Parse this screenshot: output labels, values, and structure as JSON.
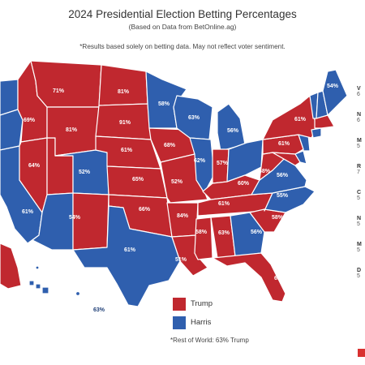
{
  "header": {
    "title": "2024 Presidential Election Betting Percentages",
    "subtitle": "(Based on Data from BetOnline.ag)",
    "note": "*Results based solely on betting data. May not reflect voter sentiment."
  },
  "colors": {
    "trump": "#c0282f",
    "harris": "#2f5fae",
    "border": "#ffffff"
  },
  "legend": [
    {
      "label": "Trump",
      "color": "#c0282f"
    },
    {
      "label": "Harris",
      "color": "#2f5fae"
    }
  ],
  "footer_note": "*Rest of World: 63% Trump",
  "side_panel": [
    {
      "abbr": "V",
      "val": "6"
    },
    {
      "abbr": "N",
      "val": "6"
    },
    {
      "abbr": "M",
      "val": "5"
    },
    {
      "abbr": "R",
      "val": "7"
    },
    {
      "abbr": "C",
      "val": "5"
    },
    {
      "abbr": "N",
      "val": "5"
    },
    {
      "abbr": "M",
      "val": "5"
    },
    {
      "abbr": "D",
      "val": "5"
    }
  ],
  "states": [
    {
      "id": "WA",
      "party": "harris",
      "pct": ""
    },
    {
      "id": "OR",
      "party": "harris",
      "pct": ""
    },
    {
      "id": "CA",
      "party": "harris",
      "pct": ""
    },
    {
      "id": "ID",
      "party": "trump",
      "pct": "69%"
    },
    {
      "id": "NV",
      "party": "trump",
      "pct": "64%"
    },
    {
      "id": "UT",
      "party": "trump",
      "pct": ""
    },
    {
      "id": "AZ",
      "party": "harris",
      "pct": "61%"
    },
    {
      "id": "MT",
      "party": "trump",
      "pct": "71%"
    },
    {
      "id": "WY",
      "party": "trump",
      "pct": "81%"
    },
    {
      "id": "CO",
      "party": "harris",
      "pct": "52%"
    },
    {
      "id": "NM",
      "party": "trump",
      "pct": "54%"
    },
    {
      "id": "ND",
      "party": "trump",
      "pct": "81%"
    },
    {
      "id": "SD",
      "party": "trump",
      "pct": "91%"
    },
    {
      "id": "NE",
      "party": "trump",
      "pct": "61%"
    },
    {
      "id": "KS",
      "party": "trump",
      "pct": "65%"
    },
    {
      "id": "OK",
      "party": "trump",
      "pct": "66%"
    },
    {
      "id": "TX",
      "party": "harris",
      "pct": "61%"
    },
    {
      "id": "MN",
      "party": "harris",
      "pct": "58%"
    },
    {
      "id": "IA",
      "party": "trump",
      "pct": "68%"
    },
    {
      "id": "MO",
      "party": "trump",
      "pct": "52%"
    },
    {
      "id": "AR",
      "party": "trump",
      "pct": "84%"
    },
    {
      "id": "LA",
      "party": "trump",
      "pct": "51%"
    },
    {
      "id": "WI",
      "party": "harris",
      "pct": "63%"
    },
    {
      "id": "IL",
      "party": "harris",
      "pct": "62%"
    },
    {
      "id": "MI",
      "party": "harris",
      "pct": "56%"
    },
    {
      "id": "IN",
      "party": "trump",
      "pct": "57%"
    },
    {
      "id": "OH",
      "party": "harris",
      "pct": ""
    },
    {
      "id": "KY",
      "party": "trump",
      "pct": "60%"
    },
    {
      "id": "TN",
      "party": "trump",
      "pct": "61%"
    },
    {
      "id": "MS",
      "party": "trump",
      "pct": "58%"
    },
    {
      "id": "AL",
      "party": "trump",
      "pct": "63%"
    },
    {
      "id": "GA",
      "party": "harris",
      "pct": "56%"
    },
    {
      "id": "FL",
      "party": "trump",
      "pct": "61%"
    },
    {
      "id": "SC",
      "party": "trump",
      "pct": "58%"
    },
    {
      "id": "NC",
      "party": "harris",
      "pct": "55%"
    },
    {
      "id": "VA",
      "party": "harris",
      "pct": "56%"
    },
    {
      "id": "WV",
      "party": "trump",
      "pct": "68%"
    },
    {
      "id": "PA",
      "party": "trump",
      "pct": "61%"
    },
    {
      "id": "NY",
      "party": "trump",
      "pct": "61%"
    },
    {
      "id": "ME",
      "party": "harris",
      "pct": "54%"
    },
    {
      "id": "NH",
      "party": "harris",
      "pct": ""
    },
    {
      "id": "VT",
      "party": "harris",
      "pct": ""
    },
    {
      "id": "MA",
      "party": "trump",
      "pct": ""
    },
    {
      "id": "CT",
      "party": "harris",
      "pct": ""
    },
    {
      "id": "NJ",
      "party": "harris",
      "pct": ""
    },
    {
      "id": "DE",
      "party": "harris",
      "pct": ""
    },
    {
      "id": "MD",
      "party": "trump",
      "pct": ""
    },
    {
      "id": "AK",
      "party": "trump",
      "pct": ""
    },
    {
      "id": "HI",
      "party": "harris",
      "pct": "63%"
    }
  ]
}
